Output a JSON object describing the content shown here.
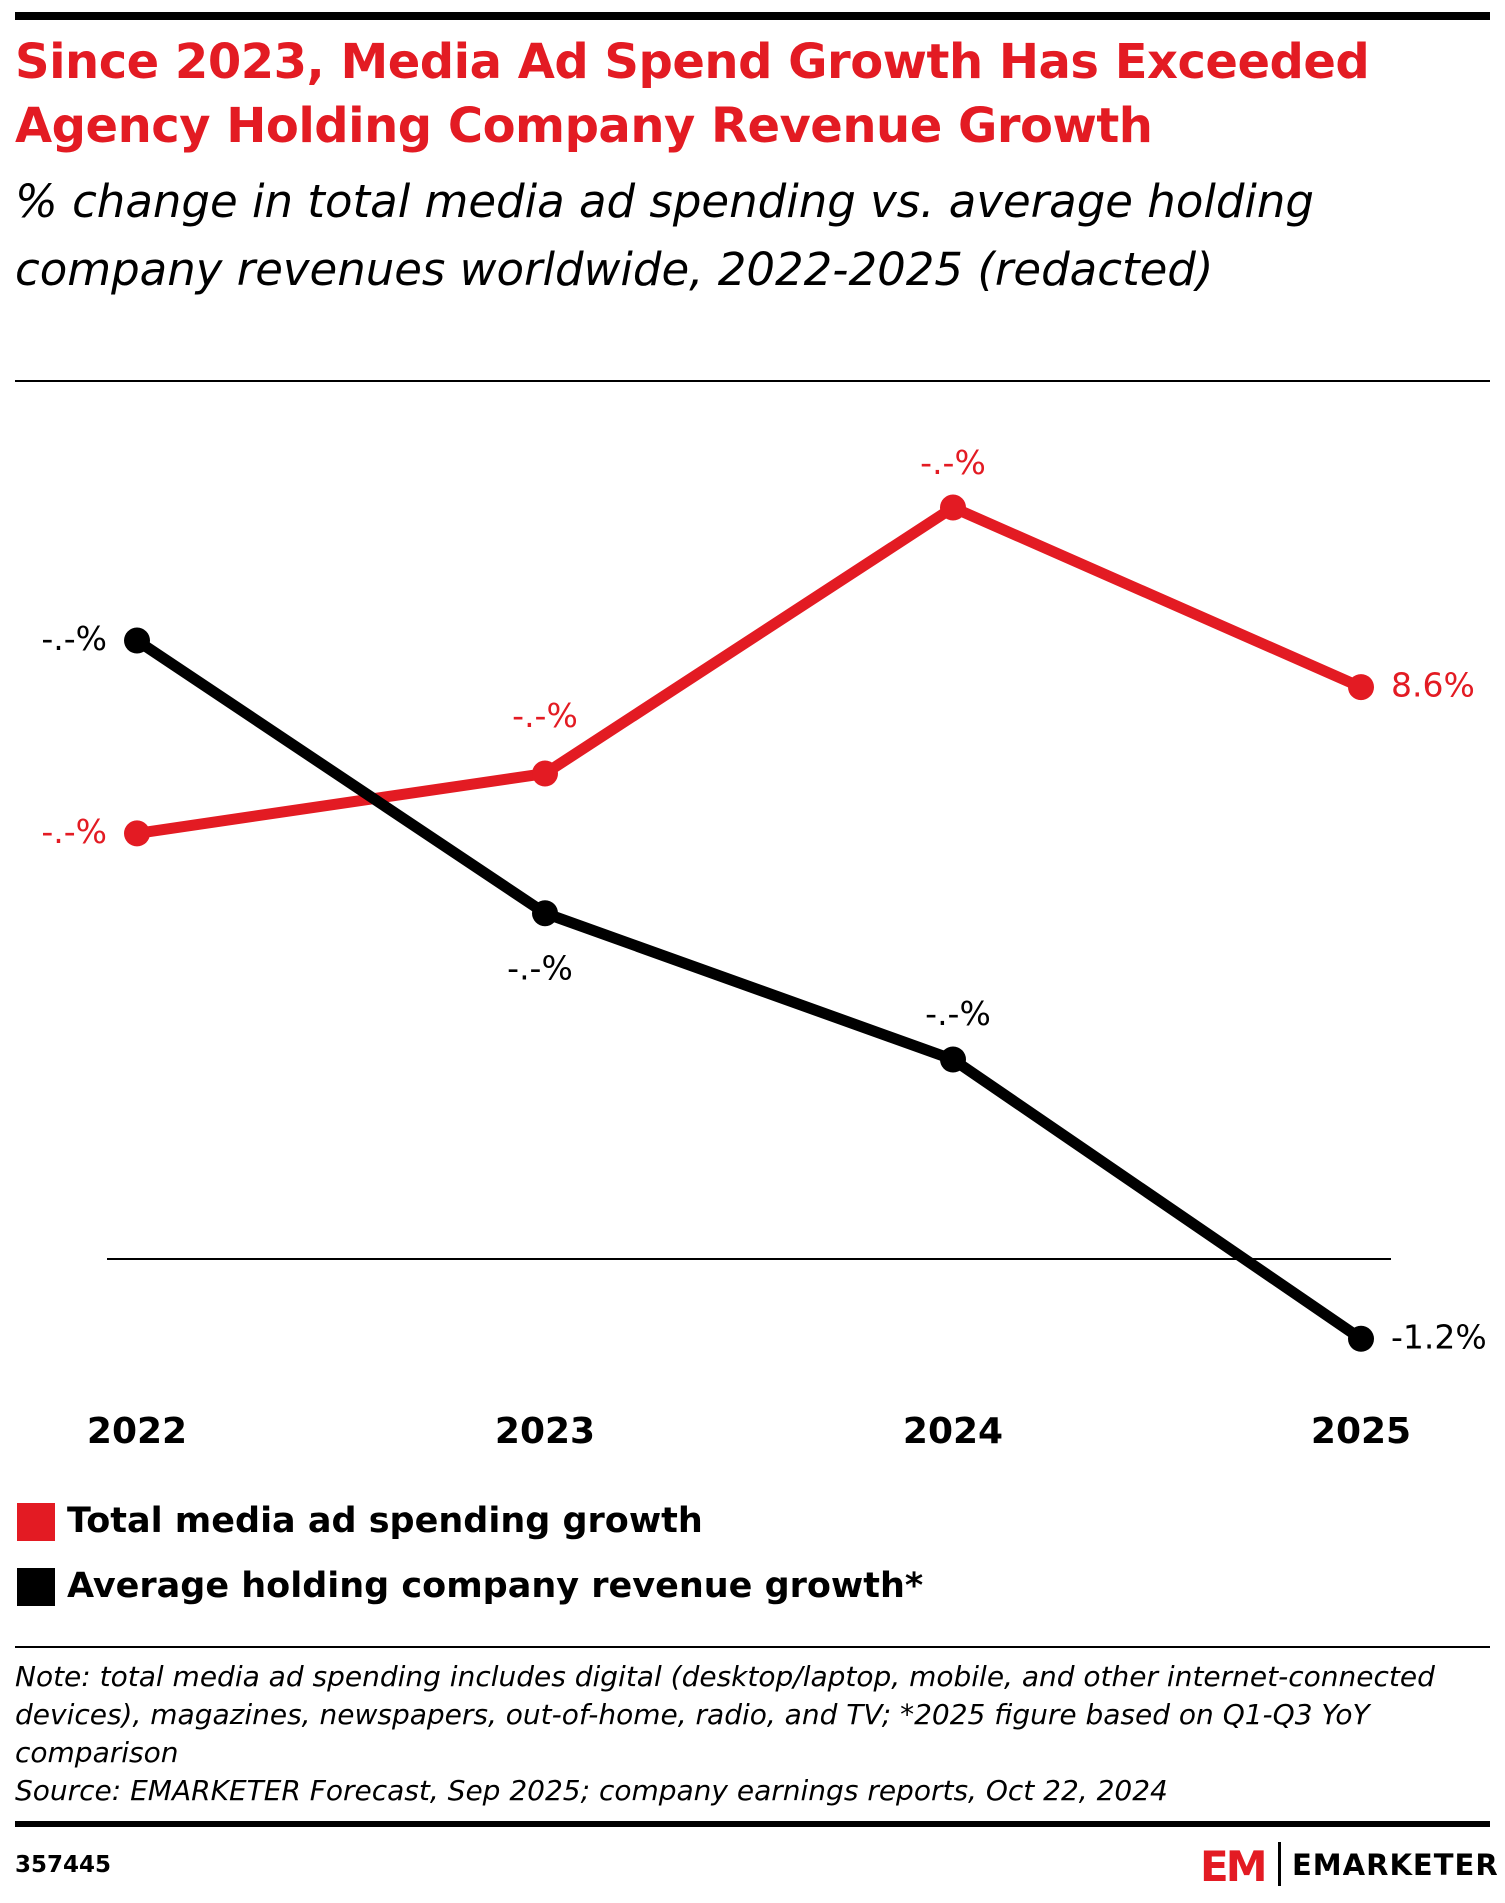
{
  "header": {
    "title": "Since 2023, Media Ad Spend Growth Has Exceeded Agency Holding Company Revenue Growth",
    "subtitle": "% change in total media ad spending vs. average holding company revenues worldwide, 2022-2025 (redacted)"
  },
  "chart_data": {
    "type": "line",
    "categories": [
      "2022",
      "2023",
      "2024",
      "2025"
    ],
    "ylim": [
      -2,
      13
    ],
    "series": [
      {
        "name": "Total media ad spending growth",
        "color": "#e31b23",
        "values": [
          6.4,
          7.3,
          11.3,
          8.6
        ],
        "value_labels": [
          "-.-%",
          "-.-%",
          "-.-%",
          "8.6%"
        ]
      },
      {
        "name": "Average holding company revenue growth*",
        "color": "#000000",
        "values": [
          9.3,
          5.2,
          3.0,
          -1.2
        ],
        "value_labels": [
          "-.-%",
          "-.-%",
          "-.-%",
          "-1.2%"
        ]
      }
    ]
  },
  "footer": {
    "note": "Note: total media ad spending includes digital (desktop/laptop, mobile, and other internet-connected devices), magazines, newspapers, out-of-home, radio, and TV; *2025 figure based on Q1-Q3 YoY comparison",
    "source": "Source: EMARKETER Forecast, Sep 2025; company earnings reports, Oct 22, 2024",
    "id": "357445",
    "logo_mark": "EM",
    "logo": "EMARKETER"
  }
}
